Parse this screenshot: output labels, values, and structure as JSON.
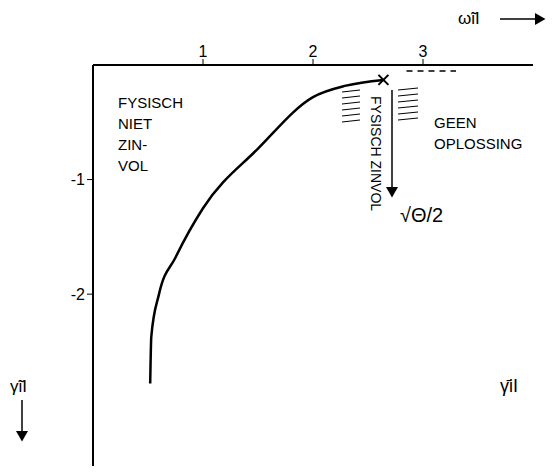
{
  "chart_data": {
    "type": "line",
    "x_label": "ω̃iI",
    "y_label": "γ̃iI",
    "xlim": [
      0,
      4
    ],
    "xticks": [
      1,
      2,
      3
    ],
    "ylim": [
      -3.5,
      0
    ],
    "yticks": [
      -1,
      -2
    ],
    "series": [
      {
        "type": "line",
        "color": "#000000",
        "x": [
          0.52,
          0.53,
          0.6,
          0.75,
          1.0,
          1.5,
          2.0,
          2.3,
          2.64
        ],
        "values": [
          -2.78,
          -2.37,
          -2.0,
          -1.68,
          -1.25,
          -0.73,
          -0.28,
          -0.18,
          -0.13
        ]
      },
      {
        "type": "scatter",
        "marker": "x",
        "color": "#000000",
        "x": [
          2.64
        ],
        "values": [
          -0.13
        ]
      }
    ],
    "annotations": [
      {
        "text": [
          "FYSISCH",
          "NIET",
          "ZIN-",
          "VOL"
        ]
      },
      {
        "text": [
          "GEEN",
          "OPLOSSING"
        ]
      },
      {
        "text": [
          "FYSISCH ZINVOL"
        ]
      },
      {
        "text": [
          "√Θ/2"
        ]
      },
      {
        "text": [
          "γ̄iI"
        ]
      }
    ]
  }
}
